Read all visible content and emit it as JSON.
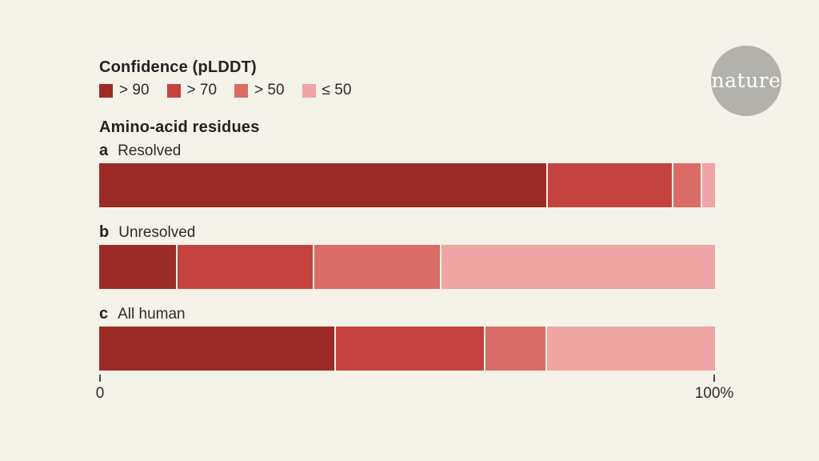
{
  "logo": {
    "text": "nature",
    "circle_color": "#b3b1ac",
    "text_color": "#ffffff"
  },
  "page": {
    "background": "#f4f2e9"
  },
  "legend": {
    "title": "Confidence (pLDDT)",
    "items": [
      {
        "id": "gt90",
        "label": "> 90",
        "color": "#9d2b25"
      },
      {
        "id": "gt70",
        "label": "> 70",
        "color": "#c5433e"
      },
      {
        "id": "gt50",
        "label": "> 50",
        "color": "#da6b65"
      },
      {
        "id": "le50",
        "label": "≤ 50",
        "color": "#eea5a3"
      }
    ]
  },
  "chart_data": {
    "type": "bar",
    "variant": "stacked-horizontal",
    "title": "Amino-acid residues",
    "xlabel": "",
    "ylabel": "",
    "xlim": [
      0,
      100
    ],
    "unit": "percent",
    "grid": false,
    "legend_position": "top-left",
    "legend_title": "Confidence (pLDDT)",
    "segment_keys": [
      "> 90",
      "> 70",
      "> 50",
      "≤ 50"
    ],
    "bars": [
      {
        "panel": "a",
        "category": "Resolved",
        "values": [
          73.2,
          20.3,
          4.4,
          2.1
        ]
      },
      {
        "panel": "b",
        "category": "Unresolved",
        "values": [
          12.5,
          22.2,
          20.5,
          44.8
        ]
      },
      {
        "panel": "c",
        "category": "All human",
        "values": [
          38.5,
          24.2,
          9.8,
          27.5
        ]
      }
    ],
    "axis": {
      "start_label": "0",
      "end_label": "100%"
    }
  }
}
